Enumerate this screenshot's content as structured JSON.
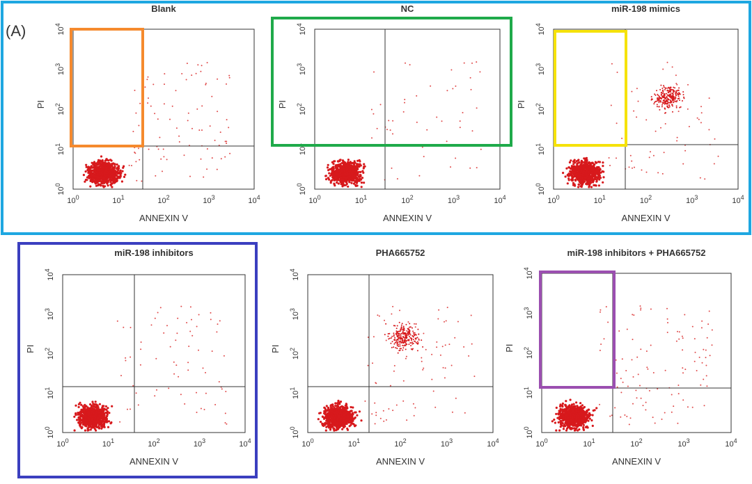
{
  "figure_label": "(A)",
  "x_axis_label": "ANNEXIN V",
  "y_axis_label": "PI",
  "tick_base": "10",
  "tick_exponents": [
    "0",
    "1",
    "2",
    "3",
    "4"
  ],
  "panels": [
    {
      "title": "Blank"
    },
    {
      "title": "NC"
    },
    {
      "title": "miR-198 mimics"
    },
    {
      "title": "miR-198 inhibitors"
    },
    {
      "title": "PHA665752"
    },
    {
      "title": "miR-198 inhibitors + PHA665752"
    }
  ]
}
